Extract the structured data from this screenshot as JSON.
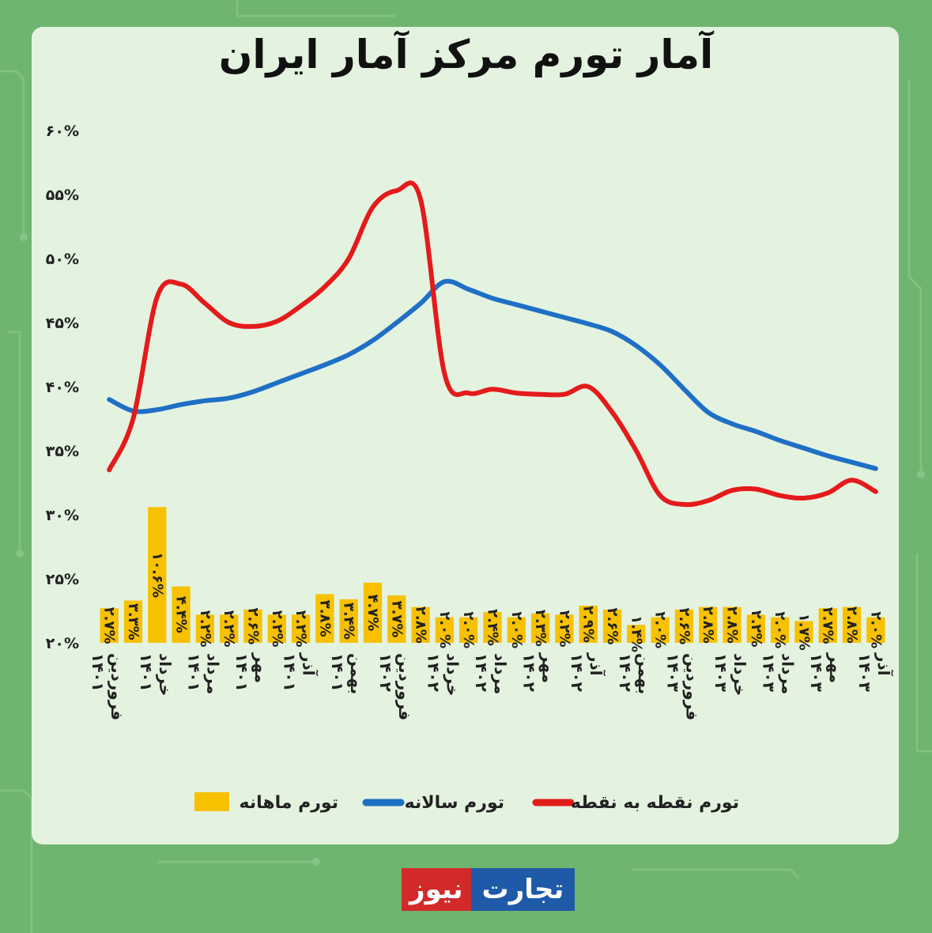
{
  "title": "آمار تورم مرکز آمار ایران",
  "brand": {
    "part_a": "نیوز",
    "part_b": "تجارت"
  },
  "chart_data": {
    "type": "bar+line",
    "title": "آمار تورم مرکز آمار ایران",
    "ylim": [
      20,
      60
    ],
    "y_ticks": [
      "۲۰%",
      "۲۵%",
      "۳۰%",
      "۳۵%",
      "۴۰%",
      "۴۵%",
      "۵۰%",
      "۵۵%",
      "۶۰%"
    ],
    "y_tick_values": [
      20,
      25,
      30,
      35,
      40,
      45,
      50,
      55,
      60
    ],
    "x_tick_labels": [
      {
        "index": 0,
        "lines": [
          "فروردین",
          "۱۴۰۱"
        ]
      },
      {
        "index": 2,
        "lines": [
          "خرداد",
          "۱۴۰۱"
        ]
      },
      {
        "index": 4,
        "lines": [
          "مرداد",
          "۱۴۰۱"
        ]
      },
      {
        "index": 6,
        "lines": [
          "مهر",
          "۱۴۰۱"
        ]
      },
      {
        "index": 8,
        "lines": [
          "آذر",
          "۱۴۰۱"
        ]
      },
      {
        "index": 10,
        "lines": [
          "بهمن",
          "۱۴۰۱"
        ]
      },
      {
        "index": 12,
        "lines": [
          "فروردین",
          "۱۴۰۲"
        ]
      },
      {
        "index": 14,
        "lines": [
          "خرداد",
          "۱۴۰۲"
        ]
      },
      {
        "index": 16,
        "lines": [
          "مرداد",
          "۱۴۰۲"
        ]
      },
      {
        "index": 18,
        "lines": [
          "مهر",
          "۱۴۰۲"
        ]
      },
      {
        "index": 20,
        "lines": [
          "آذر",
          "۱۴۰۲"
        ]
      },
      {
        "index": 22,
        "lines": [
          "بهمن",
          "۱۴۰۲"
        ]
      },
      {
        "index": 24,
        "lines": [
          "فروردین",
          "۱۴۰۳"
        ]
      },
      {
        "index": 26,
        "lines": [
          "خرداد",
          "۱۴۰۳"
        ]
      },
      {
        "index": 28,
        "lines": [
          "مرداد",
          "۱۴۰۳"
        ]
      },
      {
        "index": 30,
        "lines": [
          "مهر",
          "۱۴۰۳"
        ]
      },
      {
        "index": 32,
        "lines": [
          "آذر",
          "۱۴۰۳"
        ]
      }
    ],
    "series": [
      {
        "name": "تورم ماهانه",
        "type": "bar",
        "color": "#f7c100",
        "values": [
          2.7,
          3.3,
          10.6,
          4.4,
          2.2,
          2.2,
          2.6,
          2.2,
          2.2,
          3.8,
          3.4,
          4.7,
          3.7,
          2.8,
          2.0,
          2.0,
          2.4,
          2.0,
          2.3,
          2.2,
          2.9,
          2.6,
          1.4,
          2.0,
          2.6,
          2.8,
          2.8,
          2.2,
          2.0,
          1.7,
          2.7,
          2.8,
          2.0
        ],
        "labels": [
          "۲.۷%",
          "۳.۳%",
          "۱۰.۶%",
          "۴.۴%",
          "۲.۲%",
          "۲.۲%",
          "۲.۶%",
          "۲.۲%",
          "۲.۲%",
          "۳.۸%",
          "۳.۴%",
          "۴.۷%",
          "۳.۷%",
          "۲.۸%",
          "۲.۰%",
          "۲.۰%",
          "۲.۴%",
          "۲.۰%",
          "۲.۳%",
          "۲.۲%",
          "۲.۹%",
          "۲.۶%",
          "۱.۴%",
          "۲.۰%",
          "۲.۶%",
          "۲.۸%",
          "۲.۸%",
          "۲.۲%",
          "۲.۰%",
          "۱.۷%",
          "۲.۷%",
          "۲.۸%",
          "۲.۰%"
        ]
      },
      {
        "name": "تورم سالانه",
        "type": "line",
        "color": "#1f6fc5",
        "values": [
          39.0,
          38.1,
          38.2,
          38.6,
          38.9,
          39.1,
          39.6,
          40.3,
          41.0,
          41.7,
          42.5,
          43.6,
          45.0,
          46.5,
          48.2,
          47.6,
          46.9,
          46.4,
          45.9,
          45.4,
          44.9,
          44.3,
          43.2,
          41.7,
          39.8,
          38.0,
          37.1,
          36.5,
          35.8,
          35.2,
          34.6,
          34.1,
          33.6
        ]
      },
      {
        "name": "تورم نقطه به نقطه",
        "type": "line",
        "color": "#e41b1b",
        "values": [
          33.5,
          37.5,
          47.0,
          48.0,
          46.5,
          45.0,
          44.7,
          45.1,
          46.3,
          47.8,
          50.0,
          54.0,
          55.3,
          54.6,
          41.0,
          39.5,
          39.8,
          39.5,
          39.4,
          39.4,
          40.0,
          38.0,
          35.0,
          31.5,
          30.8,
          31.1,
          31.9,
          32.0,
          31.5,
          31.3,
          31.7,
          32.7,
          31.8
        ]
      }
    ],
    "legend": {
      "placement": "bottom"
    }
  }
}
